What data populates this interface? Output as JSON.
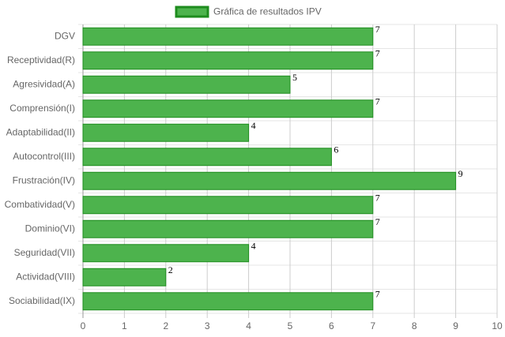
{
  "chart_data": {
    "type": "bar",
    "orientation": "horizontal",
    "categories": [
      "DGV",
      "Receptividad(R)",
      "Agresividad(A)",
      "Comprensión(I)",
      "Adaptabilidad(II)",
      "Autocontrol(III)",
      "Frustración(IV)",
      "Combatividad(V)",
      "Dominio(VI)",
      "Seguridad(VII)",
      "Actividad(VIII)",
      "Sociabilidad(IX)"
    ],
    "series": [
      {
        "name": "Gráfica de resultados IPV",
        "color": "#4db34d",
        "border_color": "#1e8c1e",
        "values": [
          7,
          7,
          5,
          7,
          4,
          6,
          9,
          7,
          7,
          4,
          2,
          7
        ]
      }
    ],
    "xlim": [
      0,
      10
    ],
    "xticks": [
      0,
      1,
      2,
      3,
      4,
      5,
      6,
      7,
      8,
      9,
      10
    ],
    "grid": true,
    "legend": "top",
    "data_labels": true
  }
}
